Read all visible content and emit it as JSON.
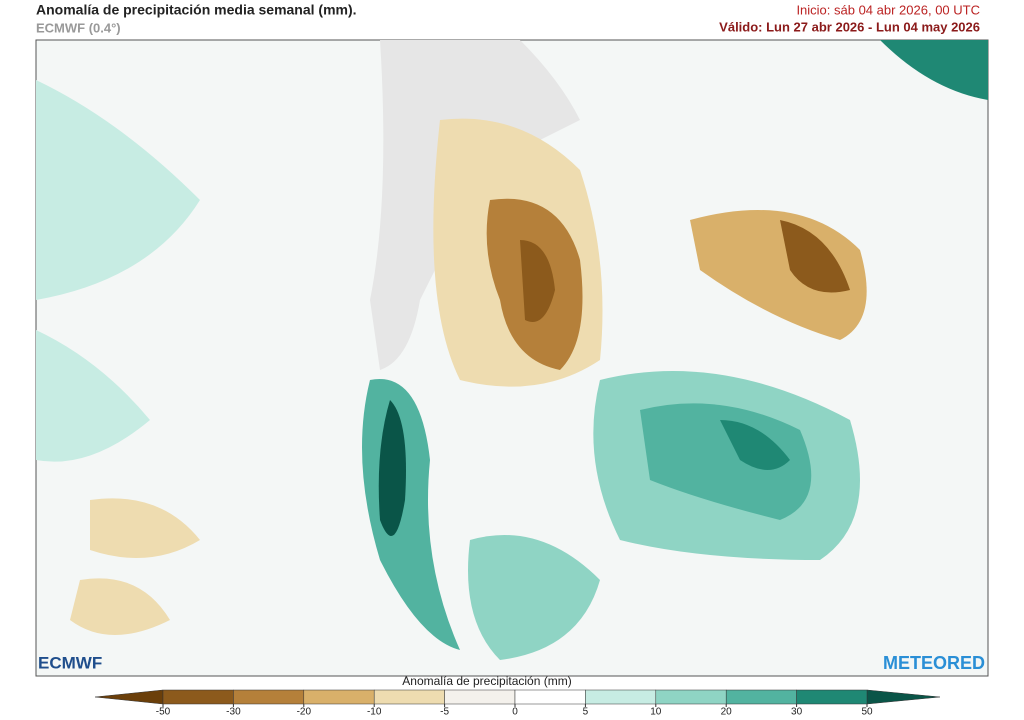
{
  "header": {
    "title": "Anomalía de precipitación media semanal (mm).",
    "model": "ECMWF (0.4°)",
    "init": "Inicio:  sáb 04 abr 2026, 00 UTC",
    "valid": "Válido: Lun 27 abr 2026 - Lun 04 may 2026"
  },
  "logos": {
    "left": "ECMWF",
    "right": "METEORED"
  },
  "colorbar": {
    "label": "Anomalía de precipitación (mm)",
    "ticks": [
      -50,
      -30,
      -20,
      -10,
      -5,
      0,
      5,
      10,
      20,
      30,
      50
    ],
    "colors": [
      "#6b3f0a",
      "#8c5a1c",
      "#b5803a",
      "#d9b06a",
      "#eedcb0",
      "#f4f1ec",
      "#ffffff",
      "#c7ece3",
      "#8fd4c4",
      "#52b3a0",
      "#1f8874",
      "#0a5548"
    ]
  }
}
